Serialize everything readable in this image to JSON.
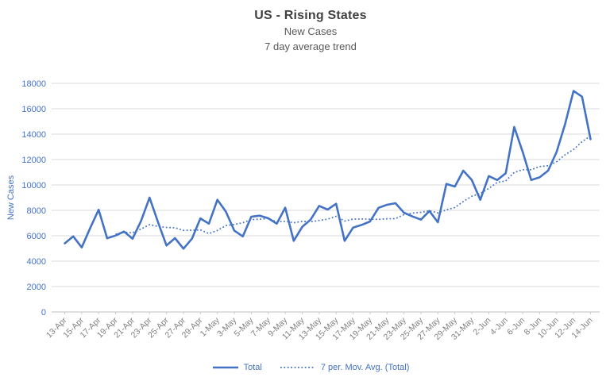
{
  "chart": {
    "title": "US - Rising States",
    "subtitle1": "New Cases",
    "subtitle2": "7 day average trend",
    "y_axis_title": "New Cases"
  },
  "colors": {
    "series_blue": "#4472C4",
    "gridline": "#D9D9D9",
    "axis": "#BFBFBF",
    "x_labels": "#7F7F7F",
    "y_labels": "#4472C4",
    "title": "#404040",
    "subtitle": "#595959"
  },
  "chart_data": {
    "type": "line",
    "title": "US - Rising States",
    "subtitle": [
      "New Cases",
      "7 day average trend"
    ],
    "xlabel": "",
    "ylabel": "New Cases",
    "ylim": [
      0,
      18000
    ],
    "y_tick_step": 2000,
    "y_tick_labels": [
      "0",
      "2000",
      "4000",
      "6000",
      "8000",
      "10000",
      "12000",
      "14000",
      "16000",
      "18000"
    ],
    "grid": true,
    "legend_position": "bottom",
    "x_label_step": 2,
    "x_tick_labels": [
      "13-Apr",
      "15-Apr",
      "17-Apr",
      "19-Apr",
      "21-Apr",
      "23-Apr",
      "25-Apr",
      "27-Apr",
      "29-Apr",
      "1-May",
      "3-May",
      "5-May",
      "7-May",
      "9-May",
      "11-May",
      "13-May",
      "15-May",
      "17-May",
      "19-May",
      "21-May",
      "23-May",
      "25-May",
      "27-May",
      "29-May",
      "31-May",
      "2-Jun",
      "4-Jun",
      "6-Jun",
      "8-Jun",
      "10-Jun",
      "12-Jun",
      "14-Jun"
    ],
    "categories": [
      "13-Apr",
      "14-Apr",
      "15-Apr",
      "16-Apr",
      "17-Apr",
      "18-Apr",
      "19-Apr",
      "20-Apr",
      "21-Apr",
      "22-Apr",
      "23-Apr",
      "24-Apr",
      "25-Apr",
      "26-Apr",
      "27-Apr",
      "28-Apr",
      "29-Apr",
      "30-Apr",
      "1-May",
      "2-May",
      "3-May",
      "4-May",
      "5-May",
      "6-May",
      "7-May",
      "8-May",
      "9-May",
      "10-May",
      "11-May",
      "12-May",
      "13-May",
      "14-May",
      "15-May",
      "16-May",
      "17-May",
      "18-May",
      "19-May",
      "20-May",
      "21-May",
      "22-May",
      "23-May",
      "24-May",
      "25-May",
      "26-May",
      "27-May",
      "28-May",
      "29-May",
      "30-May",
      "31-May",
      "1-Jun",
      "2-Jun",
      "3-Jun",
      "4-Jun",
      "5-Jun",
      "6-Jun",
      "7-Jun",
      "8-Jun",
      "9-Jun",
      "10-Jun",
      "11-Jun",
      "12-Jun",
      "13-Jun",
      "14-Jun"
    ],
    "series": [
      {
        "name": "Total",
        "style": "solid",
        "start_index": 0,
        "values": [
          5400,
          5950,
          5080,
          6600,
          8050,
          5800,
          6020,
          6330,
          5770,
          7170,
          9000,
          7060,
          5230,
          5810,
          4980,
          5770,
          7370,
          6950,
          8830,
          7900,
          6400,
          5950,
          7500,
          7580,
          7375,
          6950,
          8210,
          5600,
          6700,
          7270,
          8350,
          8060,
          8520,
          5600,
          6640,
          6850,
          7125,
          8200,
          8440,
          8560,
          7810,
          7520,
          7270,
          7950,
          7060,
          10080,
          9875,
          11125,
          10390,
          8830,
          10700,
          10390,
          10920,
          14560,
          12600,
          10390,
          10600,
          11125,
          12600,
          14800,
          17400,
          16950,
          13600
        ]
      },
      {
        "name": "7 per. Mov. Avg. (Total)",
        "style": "dotted",
        "derived": "trailing 7-period moving average of Total",
        "start_index": 6,
        "values": [
          6129,
          6261,
          6236,
          6534,
          6877,
          6736,
          6654,
          6624,
          6431,
          6431,
          6460,
          6167,
          6420,
          6801,
          6886,
          7024,
          7271,
          7301,
          7362,
          7094,
          7138,
          7024,
          7131,
          7098,
          7208,
          7306,
          7530,
          7157,
          7306,
          7327,
          7306,
          7285,
          7339,
          7345,
          7661,
          7786,
          7846,
          7964,
          7801,
          8036,
          8224,
          8697,
          9107,
          9330,
          9723,
          10199,
          10319,
          10988,
          11199,
          11199,
          11451,
          11512,
          11828,
          12382,
          12788,
          13409,
          13868
        ]
      }
    ]
  }
}
